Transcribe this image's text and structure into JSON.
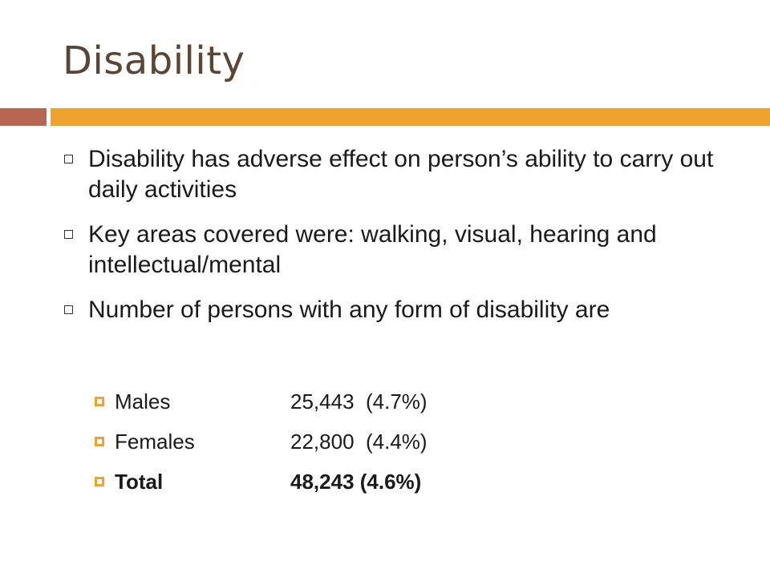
{
  "slide": {
    "title": "Disability",
    "accent_colors": {
      "left_bar": "#b7674f",
      "right_bar": "#efa32f",
      "title": "#5b4636"
    },
    "bullets": [
      {
        "text": "Disability has adverse effect on person’s ability to carry out daily activities"
      },
      {
        "text": "Key areas covered were: walking, visual, hearing and intellectual/mental"
      },
      {
        "text": "Number of persons with any form of disability are"
      }
    ],
    "sub_bullets": [
      {
        "label": "Males",
        "value": "25,443  (4.7%)"
      },
      {
        "label": "Females",
        "value": "22,800  (4.4%)"
      },
      {
        "label": "Total",
        "value": "48,243 (4.6%)"
      }
    ],
    "icons": {
      "bullet": "square-outline-icon",
      "sub_bullet": "square-filled-icon"
    }
  }
}
